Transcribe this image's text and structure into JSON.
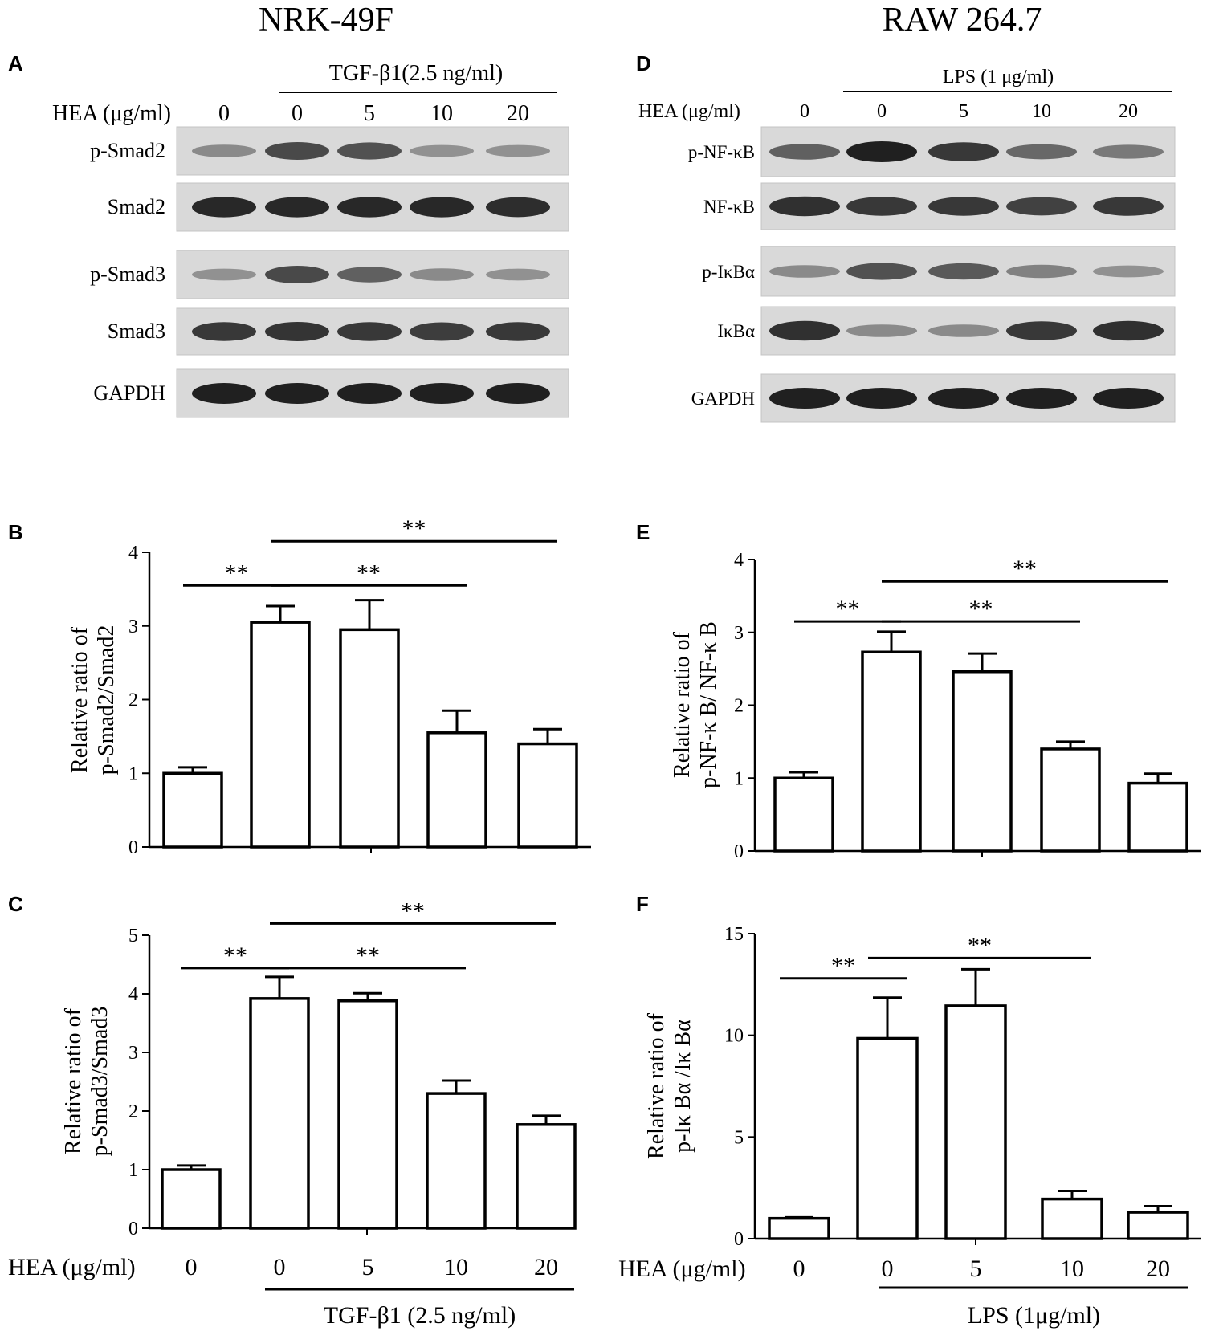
{
  "headers": {
    "left": "NRK-49F",
    "right": "RAW 264.7"
  },
  "blot_A": {
    "letter": "A",
    "treatment": "TGF-β1(2.5 ng/ml)",
    "hea_label": "HEA (μg/ml)",
    "doses": [
      "0",
      "0",
      "5",
      "10",
      "20"
    ],
    "rows": [
      {
        "label": "p-Smad2",
        "intensity": [
          0.35,
          0.75,
          0.7,
          0.3,
          0.3
        ]
      },
      {
        "label": "Smad2",
        "intensity": [
          0.95,
          0.95,
          0.95,
          0.95,
          0.92
        ]
      },
      {
        "label": "p-Smad3",
        "intensity": [
          0.3,
          0.75,
          0.6,
          0.35,
          0.3
        ]
      },
      {
        "label": "Smad3",
        "intensity": [
          0.85,
          0.88,
          0.85,
          0.82,
          0.85
        ]
      },
      {
        "label": "GAPDH",
        "intensity": [
          1.0,
          1.0,
          1.0,
          1.0,
          1.0
        ]
      }
    ]
  },
  "blot_D": {
    "letter": "D",
    "treatment": "LPS (1 μg/ml)",
    "hea_label": "HEA (μg/ml)",
    "doses": [
      "0",
      "0",
      "5",
      "10",
      "20"
    ],
    "rows": [
      {
        "label": "p-NF-κB",
        "intensity": [
          0.6,
          1.0,
          0.85,
          0.55,
          0.45
        ]
      },
      {
        "label": "NF-κB",
        "intensity": [
          0.9,
          0.85,
          0.85,
          0.8,
          0.85
        ]
      },
      {
        "label": "p-IκBα",
        "intensity": [
          0.35,
          0.7,
          0.65,
          0.4,
          0.3
        ]
      },
      {
        "label": "IκBα",
        "intensity": [
          0.9,
          0.35,
          0.35,
          0.85,
          0.9
        ]
      },
      {
        "label": "GAPDH",
        "intensity": [
          1.0,
          1.0,
          1.0,
          1.0,
          1.0
        ]
      }
    ]
  },
  "chart_data": [
    {
      "id": "B",
      "type": "bar",
      "ylabel": [
        "Relative ratio of",
        "p-Smad2/Smad2"
      ],
      "ylim": [
        0,
        4
      ],
      "yticks": [
        0,
        1,
        2,
        3,
        4
      ],
      "categories": [
        "0",
        "0",
        "5",
        "10",
        "20"
      ],
      "values": [
        1.0,
        3.05,
        2.95,
        1.55,
        1.4
      ],
      "errors": [
        0.08,
        0.22,
        0.4,
        0.3,
        0.2
      ],
      "significance": [
        {
          "from": 0,
          "to": 1,
          "label": "**",
          "y": 3.55
        },
        {
          "from": 1,
          "to": 3,
          "label": "**",
          "y": 3.55
        },
        {
          "from": 1,
          "to": 4,
          "label": "**",
          "y": 4.15
        }
      ]
    },
    {
      "id": "C",
      "type": "bar",
      "ylabel": [
        "Relative ratio of",
        "p-Smad3/Smad3"
      ],
      "ylim": [
        0,
        5
      ],
      "yticks": [
        0,
        1,
        2,
        3,
        4,
        5
      ],
      "categories": [
        "0",
        "0",
        "5",
        "10",
        "20"
      ],
      "values": [
        1.0,
        3.92,
        3.88,
        2.3,
        1.77
      ],
      "errors": [
        0.07,
        0.37,
        0.13,
        0.22,
        0.15
      ],
      "significance": [
        {
          "from": 0,
          "to": 1,
          "label": "**",
          "y": 4.44
        },
        {
          "from": 1,
          "to": 3,
          "label": "**",
          "y": 4.44
        },
        {
          "from": 1,
          "to": 4,
          "label": "**",
          "y": 5.2
        }
      ],
      "xlabel_prefix": "HEA (μg/ml)",
      "treatment": "TGF-β1 (2.5 ng/ml)"
    },
    {
      "id": "E",
      "type": "bar",
      "ylabel": [
        "Relative ratio of",
        "p-NF-κ B/ NF-κ B"
      ],
      "ylim": [
        0,
        4
      ],
      "yticks": [
        0,
        1,
        2,
        3,
        4
      ],
      "categories": [
        "0",
        "0",
        "5",
        "10",
        "20"
      ],
      "values": [
        1.0,
        2.73,
        2.46,
        1.4,
        0.93
      ],
      "errors": [
        0.08,
        0.28,
        0.25,
        0.1,
        0.13
      ],
      "significance": [
        {
          "from": 0,
          "to": 1,
          "label": "**",
          "y": 3.15
        },
        {
          "from": 1,
          "to": 3,
          "label": "**",
          "y": 3.15
        },
        {
          "from": 1,
          "to": 4,
          "label": "**",
          "y": 3.7
        }
      ]
    },
    {
      "id": "F",
      "type": "bar",
      "ylabel": [
        "Relative ratio of",
        "p-Iκ Bα /Iκ Bα"
      ],
      "ylim": [
        0,
        15
      ],
      "yticks": [
        0,
        5,
        10,
        15
      ],
      "categories": [
        "0",
        "0",
        "5",
        "10",
        "20"
      ],
      "values": [
        1.0,
        9.85,
        11.45,
        1.95,
        1.3
      ],
      "errors": [
        0.05,
        2.0,
        1.8,
        0.4,
        0.3
      ],
      "significance": [
        {
          "from": 0,
          "to": 1,
          "label": "**",
          "y": 12.8
        },
        {
          "from": 1,
          "to": 3,
          "label": "**",
          "y": 13.8
        }
      ],
      "xlabel_prefix": "HEA (μg/ml)",
      "treatment": "LPS (1μg/ml)"
    }
  ]
}
